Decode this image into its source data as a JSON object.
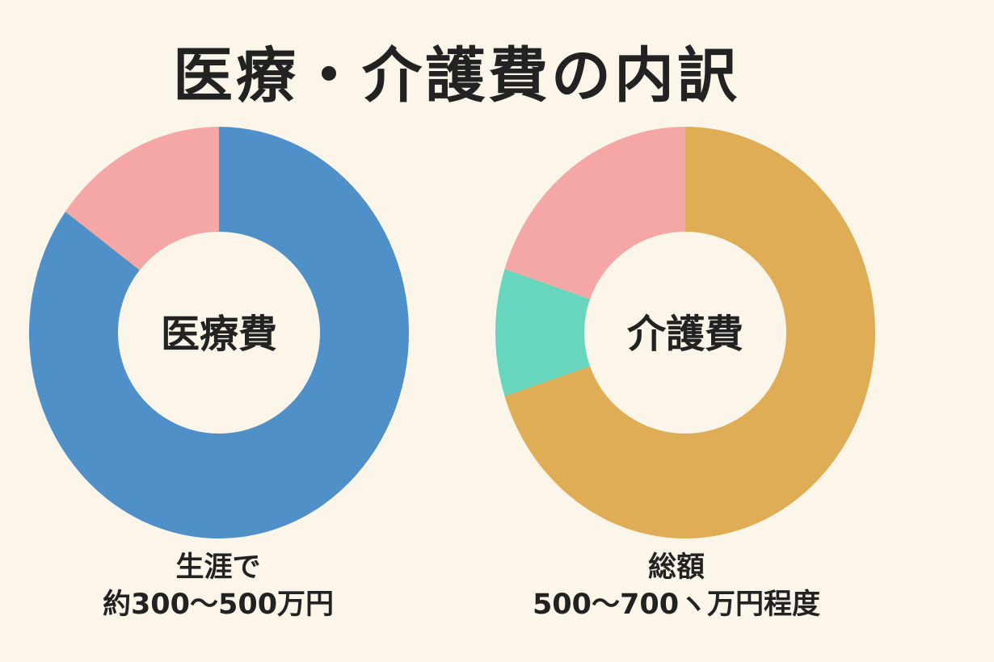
{
  "title": "医療・介護費の内訳",
  "colors": {
    "background": "#fbf5ea",
    "blue": "#4f90c8",
    "pink": "#f4a7a4",
    "gold": "#e0ad57",
    "teal": "#68d6bd"
  },
  "chart_data": [
    {
      "type": "pie",
      "center_label": "医療費",
      "caption_line1": "生涯で",
      "caption_line2": "約300〜500万円",
      "slices": [
        {
          "value": 85,
          "color": "#4f90c8"
        },
        {
          "value": 15,
          "color": "#f4a7a4"
        }
      ]
    },
    {
      "type": "pie",
      "center_label": "介護費",
      "caption_line1": "総額",
      "caption_line2": "500〜700ヽ万円程度",
      "slices": [
        {
          "value": 70,
          "color": "#e0ad57"
        },
        {
          "value": 10,
          "color": "#68d6bd"
        },
        {
          "value": 20,
          "color": "#f4a7a4"
        }
      ]
    }
  ]
}
